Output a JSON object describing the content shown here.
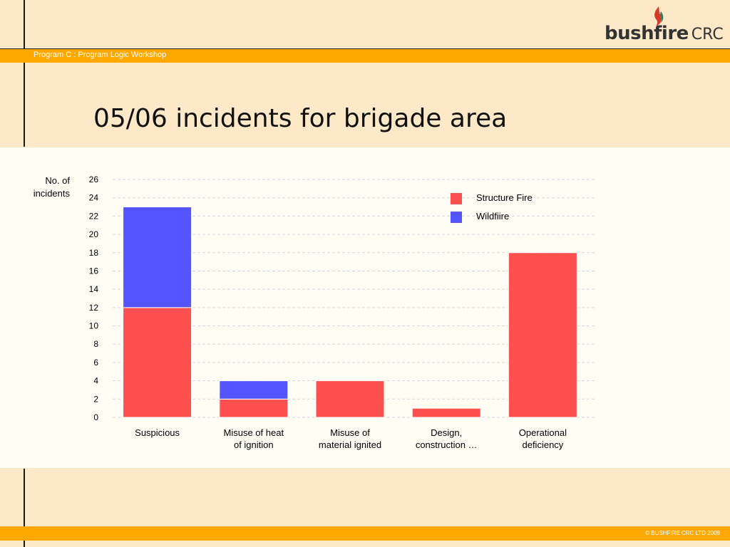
{
  "header": {
    "program_label": "Program C : Program Logic Workshop",
    "logo_word": "bushfire",
    "logo_suffix": "CRC"
  },
  "slide": {
    "title": "05/06 incidents for brigade area"
  },
  "footer": {
    "copyright": "© BUSHFIRE CRC LTD 2009"
  },
  "colors": {
    "accent_bar": "#ffa800",
    "structure_fire": "#ff5050",
    "wildfire": "#5555ff"
  },
  "chart_data": {
    "type": "bar",
    "stacked": true,
    "title": "",
    "ylabel": "No. of\nincidents",
    "xlabel": "",
    "ylim": [
      0,
      26
    ],
    "yticks": [
      0,
      2,
      4,
      6,
      8,
      10,
      12,
      14,
      16,
      18,
      20,
      22,
      24,
      26
    ],
    "grid": true,
    "legend_position": "top-right",
    "categories": [
      "Suspicious",
      "Misuse of heat\nof ignition",
      "Misuse of\nmaterial ignited",
      "Design,\nconstruction …",
      "Operational\ndeficiency"
    ],
    "series": [
      {
        "name": "Structure Fire",
        "color": "#ff5050",
        "values": [
          12,
          2,
          4,
          1,
          18
        ]
      },
      {
        "name": "Wildfiire",
        "color": "#5555ff",
        "values": [
          11,
          2,
          0,
          0,
          0
        ]
      }
    ]
  }
}
